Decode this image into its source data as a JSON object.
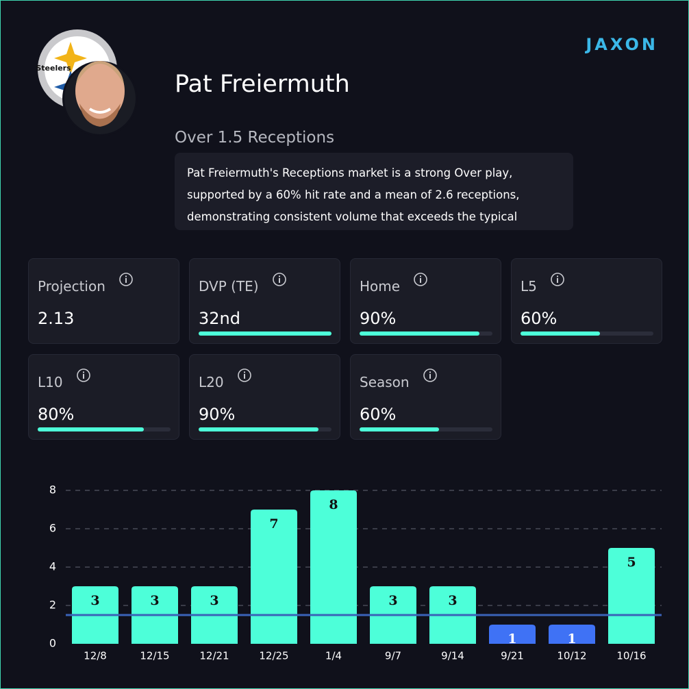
{
  "header": {
    "team": "Steelers",
    "brand": "JAXON",
    "player": "Pat Freiermuth",
    "market": "Over 1.5 Receptions",
    "summary": "Pat Freiermuth's Receptions market is a strong Over play, supported by a 60% hit rate and a mean of 2.6 receptions, demonstrating consistent volume that exceeds the typical"
  },
  "stats": [
    {
      "label": "Projection",
      "text": "2.13"
    },
    {
      "label": "DVP (TE)",
      "text": "32nd",
      "bar": 100
    },
    {
      "label": "Home",
      "text": "90%",
      "bar": 90
    },
    {
      "label": "L5",
      "text": "60%",
      "bar": 60
    },
    {
      "label": "L10",
      "text": "80%",
      "bar": 80
    },
    {
      "label": "L20",
      "text": "90%",
      "bar": 90
    },
    {
      "label": "Season",
      "text": "60%",
      "bar": 60
    }
  ],
  "chart_data": {
    "type": "bar",
    "categories": [
      "12/8",
      "12/15",
      "12/21",
      "12/25",
      "1/4",
      "9/7",
      "9/14",
      "9/21",
      "10/12",
      "10/16"
    ],
    "values": [
      3,
      3,
      3,
      7,
      8,
      3,
      3,
      1,
      1,
      5
    ],
    "threshold": 1.5,
    "color_over": "#4dffd9",
    "color_under": "#3f72f5",
    "threshold_color": "#3a62b8",
    "ylim": [
      0,
      8
    ],
    "yticks": [
      0,
      2,
      4,
      6,
      8
    ],
    "grid": true
  }
}
